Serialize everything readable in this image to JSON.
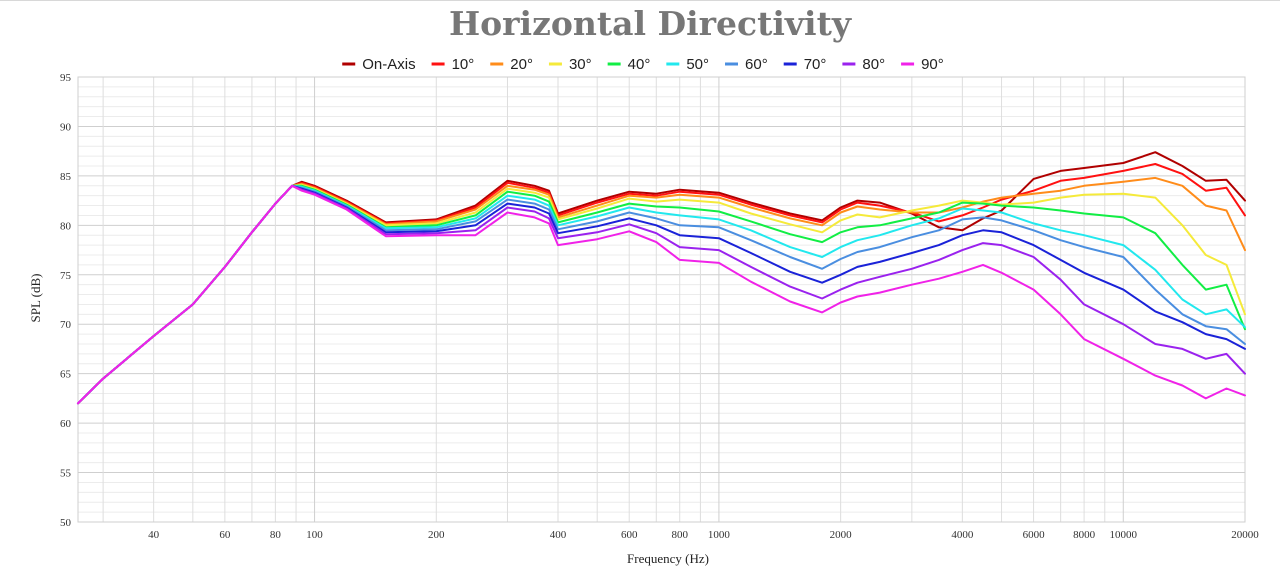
{
  "chart_data": {
    "type": "line",
    "title": "Horizontal Directivity",
    "xlabel": "Frequency (Hz)",
    "ylabel": "SPL (dB)",
    "xscale": "log",
    "xlim": [
      26,
      20000
    ],
    "ylim": [
      50,
      95
    ],
    "grid": true,
    "legend_position": "top-center",
    "x_ticks": [
      40,
      60,
      80,
      100,
      200,
      400,
      600,
      800,
      1000,
      2000,
      4000,
      6000,
      8000,
      10000,
      20000
    ],
    "y_ticks": [
      50,
      55,
      60,
      65,
      70,
      75,
      80,
      85,
      90,
      95
    ],
    "x": [
      26,
      30,
      40,
      50,
      60,
      70,
      80,
      88,
      93,
      100,
      120,
      150,
      200,
      250,
      300,
      350,
      380,
      400,
      500,
      600,
      700,
      800,
      1000,
      1200,
      1500,
      1800,
      2000,
      2200,
      2500,
      3000,
      3500,
      4000,
      4500,
      5000,
      6000,
      7000,
      8000,
      10000,
      12000,
      14000,
      16000,
      18000,
      20000
    ],
    "series": [
      {
        "name": "On-Axis",
        "color": "#b00000",
        "values": [
          62,
          64.5,
          68.8,
          72,
          75.8,
          79.3,
          82.2,
          84,
          84.4,
          84,
          82.5,
          80.3,
          80.6,
          82,
          84.5,
          84,
          83.5,
          81.2,
          82.5,
          83.4,
          83.2,
          83.6,
          83.3,
          82.3,
          81.2,
          80.5,
          81.8,
          82.5,
          82.3,
          81.2,
          79.8,
          79.5,
          80.7,
          81.5,
          84.7,
          85.5,
          85.8,
          86.3,
          87.4,
          86,
          84.5,
          84.6,
          82.5
        ]
      },
      {
        "name": "10°",
        "color": "#ff1111",
        "values": [
          62,
          64.5,
          68.8,
          72,
          75.8,
          79.3,
          82.2,
          84,
          84.3,
          83.9,
          82.4,
          80.2,
          80.5,
          81.8,
          84.3,
          83.8,
          83.3,
          81,
          82.3,
          83.2,
          83,
          83.4,
          83.1,
          82.1,
          81,
          80.3,
          81.6,
          82.3,
          82,
          81.3,
          80.4,
          81,
          81.8,
          82.6,
          83.5,
          84.5,
          84.8,
          85.5,
          86.2,
          85.2,
          83.5,
          83.8,
          81
        ]
      },
      {
        "name": "20°",
        "color": "#ff8c1a",
        "values": [
          62,
          64.5,
          68.8,
          72,
          75.8,
          79.3,
          82.2,
          84,
          84.2,
          83.8,
          82.3,
          80.1,
          80.4,
          81.6,
          84,
          83.6,
          83.1,
          80.8,
          82,
          83,
          82.8,
          83.1,
          82.8,
          81.8,
          80.7,
          80,
          81.3,
          81.9,
          81.6,
          81.3,
          81.3,
          81.8,
          82.4,
          82.8,
          83.2,
          83.5,
          84,
          84.4,
          84.8,
          84,
          82,
          81.5,
          77.5
        ]
      },
      {
        "name": "30°",
        "color": "#f5ea3a",
        "values": [
          62,
          64.5,
          68.8,
          72,
          75.8,
          79.3,
          82.2,
          84,
          84.1,
          83.7,
          82.2,
          80,
          80.2,
          81.3,
          83.7,
          83.3,
          82.8,
          80.6,
          81.7,
          82.7,
          82.4,
          82.6,
          82.3,
          81.2,
          80.1,
          79.3,
          80.5,
          81.1,
          80.8,
          81.5,
          82,
          82.5,
          82.3,
          82.1,
          82.3,
          82.8,
          83.1,
          83.2,
          82.8,
          80,
          77,
          76,
          71
        ]
      },
      {
        "name": "40°",
        "color": "#11ee44",
        "values": [
          62,
          64.5,
          68.8,
          72,
          75.8,
          79.3,
          82.2,
          84,
          84,
          83.6,
          82.1,
          79.8,
          80,
          81,
          83.4,
          83,
          82.4,
          80.3,
          81.3,
          82.2,
          81.9,
          81.8,
          81.4,
          80.4,
          79.1,
          78.3,
          79.3,
          79.8,
          80,
          80.7,
          81.3,
          82.3,
          82.2,
          82,
          81.8,
          81.5,
          81.2,
          80.8,
          79.2,
          76,
          73.5,
          74,
          69.5
        ]
      },
      {
        "name": "50°",
        "color": "#22e8ee",
        "values": [
          62,
          64.5,
          68.8,
          72,
          75.8,
          79.3,
          82.2,
          84,
          83.9,
          83.5,
          82,
          79.7,
          79.8,
          80.7,
          83,
          82.6,
          82,
          80,
          80.9,
          81.8,
          81.3,
          81,
          80.6,
          79.5,
          77.8,
          76.8,
          77.8,
          78.5,
          79,
          80,
          80.7,
          81.7,
          81.5,
          81.3,
          80.2,
          79.5,
          79,
          78,
          75.5,
          72.5,
          71,
          71.5,
          69.7
        ]
      },
      {
        "name": "60°",
        "color": "#4a8ee0",
        "values": [
          62,
          64.5,
          68.8,
          72,
          75.8,
          79.3,
          82.2,
          84,
          83.8,
          83.4,
          81.9,
          79.5,
          79.6,
          80.4,
          82.6,
          82.2,
          81.6,
          79.6,
          80.4,
          81.3,
          80.7,
          80,
          79.8,
          78.5,
          76.8,
          75.6,
          76.6,
          77.3,
          77.8,
          78.8,
          79.5,
          80.6,
          80.8,
          80.5,
          79.5,
          78.5,
          77.8,
          76.8,
          73.5,
          71,
          69.8,
          69.5,
          68
        ]
      },
      {
        "name": "70°",
        "color": "#1a22d8",
        "values": [
          62,
          64.5,
          68.8,
          72,
          75.8,
          79.3,
          82.2,
          84,
          83.7,
          83.3,
          81.8,
          79.3,
          79.4,
          80,
          82.2,
          81.8,
          81.2,
          79.2,
          79.9,
          80.7,
          80,
          79,
          78.7,
          77.2,
          75.3,
          74.2,
          75,
          75.8,
          76.3,
          77.2,
          78,
          79,
          79.5,
          79.3,
          78,
          76.5,
          75.2,
          73.5,
          71.3,
          70.2,
          69,
          68.5,
          67.5
        ]
      },
      {
        "name": "80°",
        "color": "#9a22ee",
        "values": [
          62,
          64.5,
          68.8,
          72,
          75.8,
          79.3,
          82.2,
          84,
          83.6,
          83.2,
          81.7,
          79.1,
          79.2,
          79.5,
          81.8,
          81.4,
          80.7,
          78.7,
          79.3,
          80.1,
          79.2,
          77.8,
          77.5,
          75.8,
          73.8,
          72.6,
          73.5,
          74.2,
          74.8,
          75.6,
          76.5,
          77.5,
          78.2,
          78,
          76.8,
          74.5,
          72,
          70,
          68,
          67.5,
          66.5,
          67,
          65
        ]
      },
      {
        "name": "90°",
        "color": "#f022e8",
        "values": [
          62,
          64.5,
          68.8,
          72,
          75.8,
          79.3,
          82.2,
          84,
          83.5,
          83.1,
          81.6,
          78.9,
          79,
          79,
          81.3,
          80.8,
          80.2,
          78,
          78.6,
          79.4,
          78.3,
          76.5,
          76.2,
          74.3,
          72.3,
          71.2,
          72.2,
          72.8,
          73.2,
          74,
          74.6,
          75.3,
          76,
          75.2,
          73.5,
          71,
          68.5,
          66.5,
          64.8,
          63.8,
          62.5,
          63.5,
          62.8
        ]
      }
    ]
  }
}
